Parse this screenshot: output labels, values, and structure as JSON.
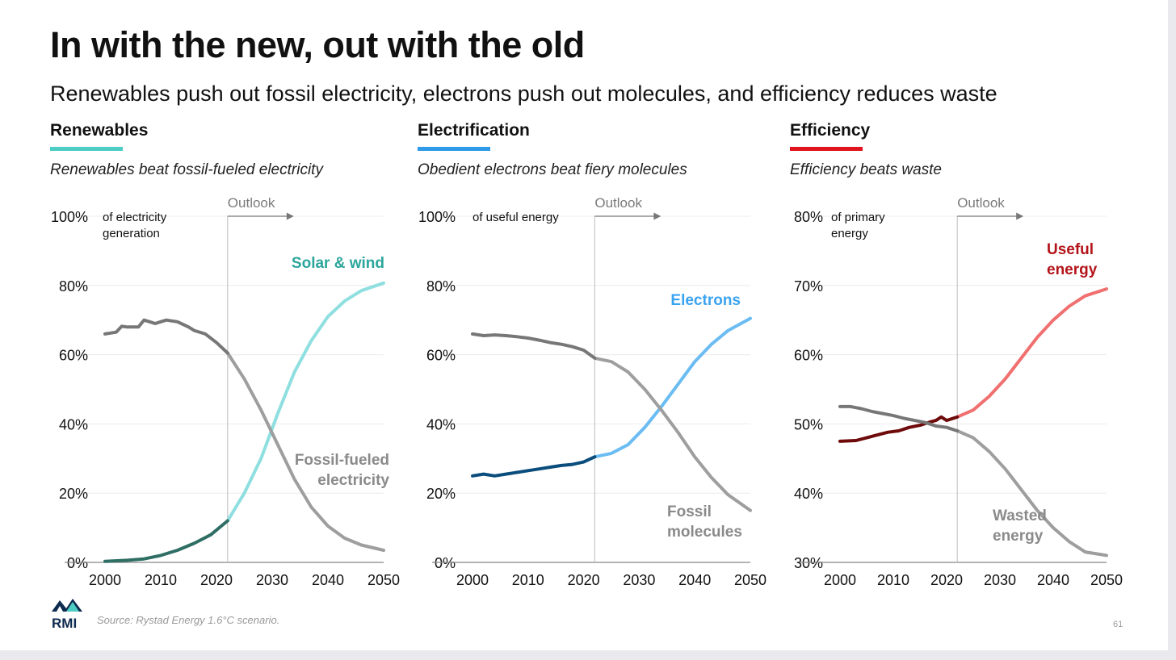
{
  "slide": {
    "title": "In with the new, out with the old",
    "subtitle": "Renewables push out fossil electricity, electrons push out molecules, and efficiency reduces waste",
    "source": "Source: Rystad Energy 1.6°C scenario.",
    "page_number": "61",
    "logo_text": "RMI"
  },
  "sections": [
    {
      "heading": "Renewables",
      "subheading": "Renewables beat fossil-fueled electricity",
      "accent": "#4ecdc4"
    },
    {
      "heading": "Electrification",
      "subheading": "Obedient electrons beat fiery molecules",
      "accent": "#2f9be8"
    },
    {
      "heading": "Efficiency",
      "subheading": "Efficiency beats waste",
      "accent": "#e0141e"
    }
  ],
  "chart_data": [
    {
      "type": "line",
      "xlim": [
        2000,
        2050
      ],
      "ylim": [
        0,
        100
      ],
      "x_ticks": [
        2000,
        2010,
        2020,
        2030,
        2040,
        2050
      ],
      "y_ticks": [
        0,
        20,
        40,
        60,
        80,
        100
      ],
      "y_tick_labels": [
        "0%",
        "20%",
        "40%",
        "60%",
        "80%",
        "100%"
      ],
      "ylabel_lines": [
        "of electricity",
        "generation"
      ],
      "outlook_label": "Outlook",
      "outlook_year": 2022,
      "grid": true,
      "series": [
        {
          "name_lines": [
            "Solar & wind"
          ],
          "label_color": "#2aa59b",
          "historical_color": "#2e6e64",
          "outlook_color": "#8fdfe0",
          "x": [
            2000,
            2004,
            2007,
            2010,
            2013,
            2016,
            2019,
            2022,
            2025,
            2028,
            2031,
            2034,
            2037,
            2040,
            2043,
            2046,
            2050
          ],
          "y": [
            0.3,
            0.6,
            1,
            2,
            3.5,
            5.5,
            8,
            12,
            20,
            30,
            43,
            55,
            64,
            71,
            75.5,
            78.5,
            80.7
          ]
        },
        {
          "name_lines": [
            "Fossil-fueled",
            "electricity"
          ],
          "label_color": "#8a8a8a",
          "historical_color": "#777777",
          "outlook_color": "#9e9e9e",
          "x": [
            2000,
            2002,
            2003,
            2004,
            2006,
            2007,
            2008,
            2009,
            2010,
            2011,
            2013,
            2015,
            2016,
            2018,
            2020,
            2022,
            2025,
            2028,
            2031,
            2034,
            2037,
            2040,
            2043,
            2046,
            2050
          ],
          "y": [
            66,
            66.5,
            68.2,
            68,
            68,
            70,
            69.5,
            69,
            69.5,
            70,
            69.5,
            68,
            67,
            66,
            63.5,
            60.5,
            53,
            44,
            34,
            24,
            16,
            10.5,
            7,
            5,
            3.5
          ]
        }
      ]
    },
    {
      "type": "line",
      "xlim": [
        2000,
        2050
      ],
      "ylim": [
        0,
        100
      ],
      "x_ticks": [
        2000,
        2010,
        2020,
        2030,
        2040,
        2050
      ],
      "y_ticks": [
        0,
        20,
        40,
        60,
        80,
        100
      ],
      "y_tick_labels": [
        "0%",
        "20%",
        "40%",
        "60%",
        "80%",
        "100%"
      ],
      "ylabel_lines": [
        "of useful energy"
      ],
      "outlook_label": "Outlook",
      "outlook_year": 2022,
      "grid": true,
      "series": [
        {
          "name_lines": [
            "Electrons"
          ],
          "label_color": "#3aa3ef",
          "historical_color": "#0a4d7c",
          "outlook_color": "#6bbcf2",
          "x": [
            2000,
            2002,
            2004,
            2006,
            2008,
            2010,
            2012,
            2014,
            2016,
            2018,
            2020,
            2022,
            2025,
            2028,
            2031,
            2034,
            2037,
            2040,
            2043,
            2046,
            2050
          ],
          "y": [
            25,
            25.5,
            25,
            25.5,
            26,
            26.5,
            27,
            27.5,
            28,
            28.3,
            29,
            30.5,
            31.5,
            34,
            39,
            45,
            51.5,
            58,
            63,
            67,
            70.5
          ]
        },
        {
          "name_lines": [
            "Fossil",
            "molecules"
          ],
          "label_color": "#8a8a8a",
          "historical_color": "#777777",
          "outlook_color": "#9e9e9e",
          "x": [
            2000,
            2002,
            2004,
            2006,
            2008,
            2010,
            2012,
            2014,
            2016,
            2018,
            2020,
            2022,
            2025,
            2028,
            2031,
            2034,
            2037,
            2040,
            2043,
            2046,
            2050
          ],
          "y": [
            66,
            65.5,
            65.7,
            65.5,
            65.2,
            64.8,
            64.2,
            63.5,
            63,
            62.3,
            61.3,
            59,
            58,
            55,
            50,
            44,
            37.5,
            30.5,
            24.5,
            19.5,
            15
          ]
        }
      ]
    },
    {
      "type": "line",
      "xlim": [
        2000,
        2050
      ],
      "ylim": [
        30,
        80
      ],
      "x_ticks": [
        2000,
        2010,
        2020,
        2030,
        2040,
        2050
      ],
      "y_ticks": [
        30,
        40,
        50,
        60,
        70,
        80
      ],
      "y_tick_labels": [
        "30%",
        "40%",
        "50%",
        "60%",
        "70%",
        "80%"
      ],
      "ylabel_lines": [
        "of primary",
        "energy"
      ],
      "outlook_label": "Outlook",
      "outlook_year": 2022,
      "grid": true,
      "series": [
        {
          "name_lines": [
            "Useful",
            "energy"
          ],
          "label_color": "#b3141a",
          "historical_color": "#6e0a0a",
          "outlook_color": "#f07070",
          "x": [
            2000,
            2003,
            2005,
            2007,
            2009,
            2011,
            2013,
            2015,
            2017,
            2018,
            2019,
            2020,
            2022,
            2025,
            2028,
            2031,
            2034,
            2037,
            2040,
            2043,
            2046,
            2050
          ],
          "y": [
            47.5,
            47.6,
            48,
            48.4,
            48.8,
            49,
            49.5,
            49.8,
            50.3,
            50.5,
            51,
            50.5,
            51,
            52,
            54,
            56.5,
            59.5,
            62.5,
            65,
            67,
            68.5,
            69.5
          ]
        },
        {
          "name_lines": [
            "Wasted",
            "energy"
          ],
          "label_color": "#8a8a8a",
          "historical_color": "#777777",
          "outlook_color": "#9e9e9e",
          "x": [
            2000,
            2002,
            2004,
            2006,
            2008,
            2010,
            2012,
            2014,
            2016,
            2018,
            2020,
            2022,
            2025,
            2028,
            2031,
            2034,
            2037,
            2040,
            2043,
            2046,
            2050
          ],
          "y": [
            52.5,
            52.5,
            52.2,
            51.8,
            51.5,
            51.2,
            50.8,
            50.5,
            50.2,
            49.7,
            49.5,
            49,
            48,
            46,
            43.5,
            40.5,
            37.5,
            35,
            33,
            31.5,
            31
          ]
        }
      ]
    }
  ]
}
